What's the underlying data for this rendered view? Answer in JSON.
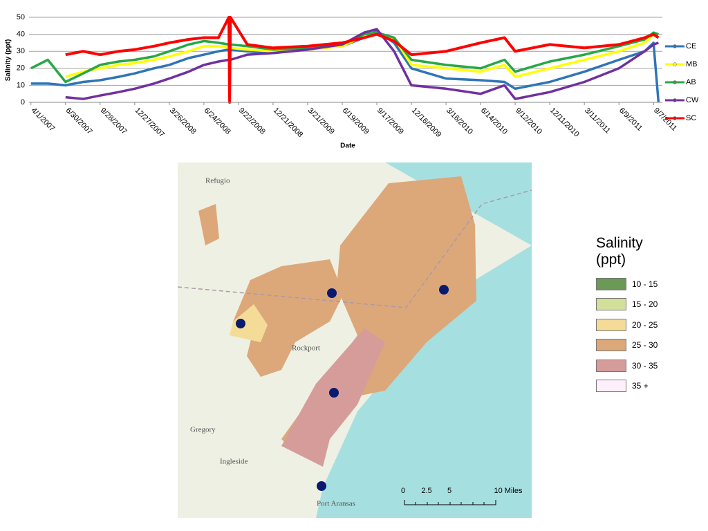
{
  "chart_data": {
    "type": "line",
    "y_label": "Salinity (ppt)",
    "x_label": "Date",
    "x": [
      "4/1/2007",
      "5/15/2007",
      "6/30/2007",
      "8/15/2007",
      "9/28/2007",
      "11/15/2007",
      "12/27/2007",
      "2/15/2008",
      "3/26/2008",
      "5/15/2008",
      "6/24/2008",
      "8/1/2008",
      "8/28/2008",
      "8/30/2008",
      "9/1/2008",
      "10/15/2008",
      "12/21/2008",
      "3/21/2009",
      "6/19/2009",
      "8/15/2009",
      "9/17/2009",
      "11/1/2009",
      "12/16/2009",
      "3/16/2010",
      "6/14/2010",
      "8/15/2010",
      "9/12/2010",
      "12/11/2010",
      "3/11/2011",
      "6/9/2011",
      "8/15/2011",
      "9/7/2011",
      "9/20/2011"
    ],
    "series": [
      {
        "name": "CE",
        "color": "#2e75b6",
        "values": [
          11,
          11,
          10,
          12,
          13,
          15,
          17,
          20,
          22,
          26,
          28,
          30,
          31,
          31,
          31,
          30,
          29,
          31,
          33,
          38,
          42,
          35,
          20,
          14,
          13,
          12,
          8,
          12,
          18,
          25,
          30,
          35,
          0
        ]
      },
      {
        "name": "MB",
        "color": "#ffff00",
        "values": [
          null,
          null,
          15,
          18,
          20,
          22,
          23,
          25,
          27,
          30,
          33,
          33,
          32,
          32,
          32,
          31,
          30,
          31,
          33,
          39,
          40,
          38,
          22,
          20,
          18,
          22,
          15,
          20,
          25,
          30,
          35,
          40,
          38
        ]
      },
      {
        "name": "AB",
        "color": "#27a844",
        "values": [
          20,
          25,
          12,
          17,
          22,
          24,
          25,
          27,
          30,
          34,
          36,
          35,
          34,
          34,
          34,
          33,
          31,
          32,
          34,
          40,
          41,
          38,
          25,
          22,
          20,
          25,
          18,
          24,
          28,
          33,
          37,
          41,
          40
        ]
      },
      {
        "name": "CW",
        "color": "#7030a0",
        "values": [
          null,
          null,
          3,
          2,
          4,
          6,
          8,
          11,
          14,
          18,
          22,
          24,
          25,
          25,
          25,
          28,
          29,
          31,
          34,
          41,
          43,
          30,
          10,
          8,
          5,
          10,
          2,
          6,
          12,
          20,
          30,
          34,
          35
        ]
      },
      {
        "name": "SC",
        "color": "#ff0000",
        "values": [
          null,
          null,
          28,
          30,
          28,
          30,
          31,
          33,
          35,
          37,
          38,
          38,
          50,
          0,
          50,
          34,
          32,
          33,
          35,
          38,
          40,
          36,
          28,
          30,
          35,
          38,
          30,
          34,
          32,
          34,
          38,
          40,
          38
        ]
      }
    ],
    "xlim": [
      "3/27/2007",
      "9/30/2011"
    ],
    "xticks": [
      "4/1/2007",
      "6/30/2007",
      "9/28/2007",
      "12/27/2007",
      "3/26/2008",
      "6/24/2008",
      "9/22/2008",
      "12/21/2008",
      "3/21/2009",
      "6/19/2009",
      "9/17/2009",
      "12/16/2009",
      "3/16/2010",
      "6/14/2010",
      "9/12/2010",
      "12/11/2010",
      "3/11/2011",
      "6/9/2011",
      "9/7/2011"
    ],
    "ylim": [
      0,
      50
    ],
    "yticks": [
      0,
      10,
      20,
      30,
      40,
      50
    ],
    "grid": true,
    "legend": "right"
  },
  "map": {
    "places": [
      "Refugio",
      "Rockport",
      "Gregory",
      "Ingleside",
      "Port Aransas"
    ],
    "scale_labels": [
      "0",
      "2.5",
      "5",
      "10 Miles"
    ],
    "legend": {
      "title": "Salinity (ppt)",
      "items": [
        {
          "label": "10 - 15",
          "color": "#6a9a55"
        },
        {
          "label": "15 - 20",
          "color": "#d3e09a"
        },
        {
          "label": "20 - 25",
          "color": "#f4dc98"
        },
        {
          "label": "25 - 30",
          "color": "#dca87a"
        },
        {
          "label": "30 - 35",
          "color": "#d59c9a"
        },
        {
          "label": "35 +",
          "color": "#fdf0fb"
        }
      ]
    }
  }
}
